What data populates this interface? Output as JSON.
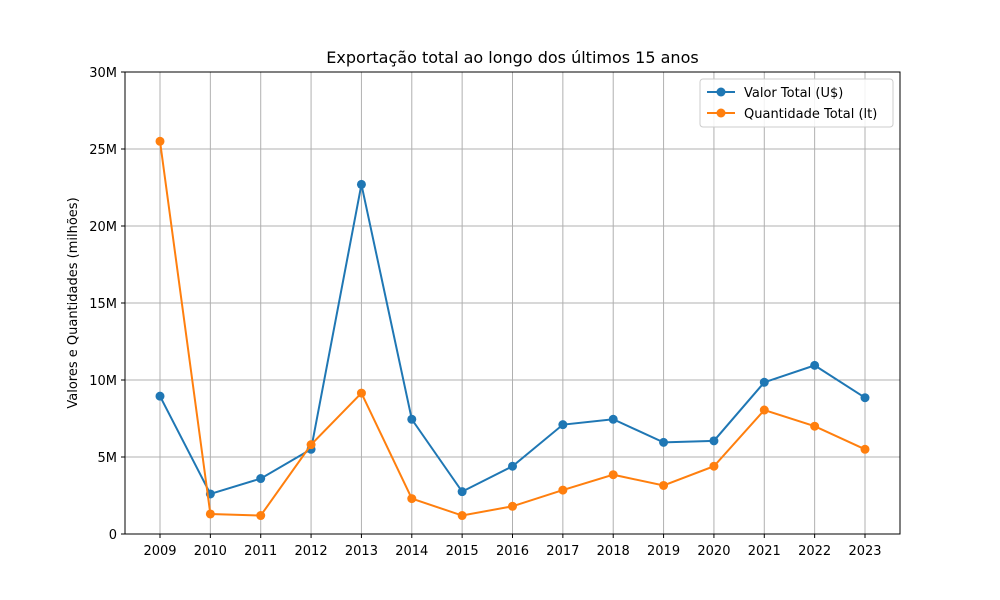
{
  "chart_data": {
    "type": "line",
    "title": "Exportação total ao longo dos últimos 15 anos",
    "xlabel": "",
    "ylabel": "Valores e Quantidades (milhões)",
    "x": [
      "2009",
      "2010",
      "2011",
      "2012",
      "2013",
      "2014",
      "2015",
      "2016",
      "2017",
      "2018",
      "2019",
      "2020",
      "2021",
      "2022",
      "2023"
    ],
    "ylim": [
      0,
      30000000
    ],
    "yticks": [
      0,
      5000000,
      10000000,
      15000000,
      20000000,
      25000000,
      30000000
    ],
    "ytick_labels": [
      "0",
      "5M",
      "10M",
      "15M",
      "20M",
      "25M",
      "30M"
    ],
    "grid": true,
    "legend_position": "top-right",
    "series": [
      {
        "name": "Valor Total (U$)",
        "color": "#1f77b4",
        "marker": "circle",
        "values": [
          8950000,
          2600000,
          3600000,
          5500000,
          22700000,
          7450000,
          2750000,
          4400000,
          7100000,
          7450000,
          5950000,
          6050000,
          9850000,
          10950000,
          8850000
        ]
      },
      {
        "name": "Quantidade Total (lt)",
        "color": "#ff7f0e",
        "marker": "circle",
        "values": [
          25500000,
          1300000,
          1200000,
          5800000,
          9150000,
          2300000,
          1200000,
          1800000,
          2850000,
          3850000,
          3150000,
          4400000,
          8050000,
          7000000,
          5500000
        ]
      }
    ]
  }
}
